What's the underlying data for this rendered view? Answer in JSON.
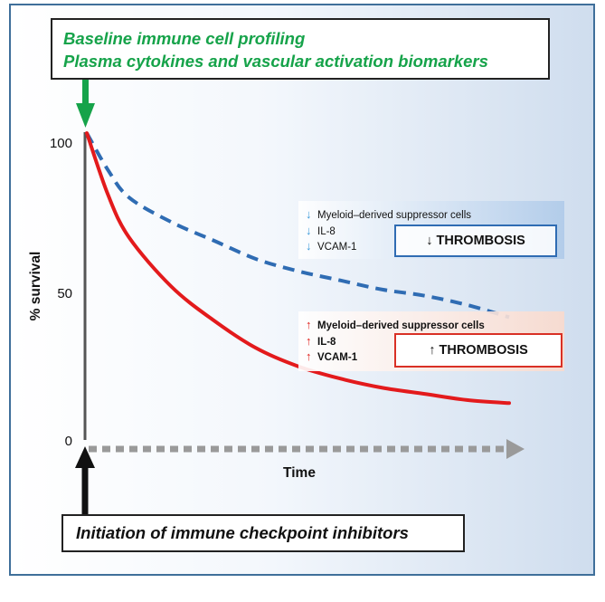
{
  "baseline_callout": {
    "line1": "Baseline immune cell profiling",
    "line2": "Plasma cytokines and vascular activation biomarkers"
  },
  "initiation_callout": "Initiation of immune checkpoint inhibitors",
  "colors": {
    "green_text": "#16a34a",
    "blue_curve": "#2f6cb3",
    "red_curve": "#e31a1c",
    "arrow_black": "#111111",
    "arrow_green": "#16a34a",
    "time_axis_gray": "#9a9a9a",
    "frame_border": "#3f6f9a"
  },
  "chart_data": {
    "type": "line",
    "xlabel": "Time",
    "ylabel": "% survival",
    "y_ticks": [
      "100",
      "50",
      "0"
    ],
    "ylim": [
      0,
      100
    ],
    "xlim": [
      0,
      10
    ],
    "series": [
      {
        "style": "dashed",
        "color": "#2f6cb3",
        "x": [
          0,
          0.5,
          1,
          2,
          3,
          4,
          5,
          6,
          7,
          8,
          9,
          10
        ],
        "y": [
          100,
          88,
          79,
          71,
          65,
          59,
          55,
          52,
          49,
          47,
          44,
          40
        ]
      },
      {
        "style": "solid",
        "color": "#e31a1c",
        "x": [
          0,
          0.5,
          1,
          2,
          3,
          4,
          5,
          6,
          7,
          8,
          9,
          10
        ],
        "y": [
          100,
          80,
          66,
          50,
          39,
          30,
          24,
          20,
          17,
          15,
          13,
          12
        ]
      }
    ]
  },
  "low_marker_panel": {
    "arrow": "↓",
    "items": [
      "Myeloid–derived suppressor cells",
      "IL-8",
      "VCAM-1"
    ],
    "outcome": "↓ THROMBOSIS"
  },
  "high_marker_panel": {
    "arrow": "↑",
    "items": [
      "Myeloid–derived suppressor cells",
      "IL-8",
      "VCAM-1"
    ],
    "outcome": "↑ THROMBOSIS"
  }
}
